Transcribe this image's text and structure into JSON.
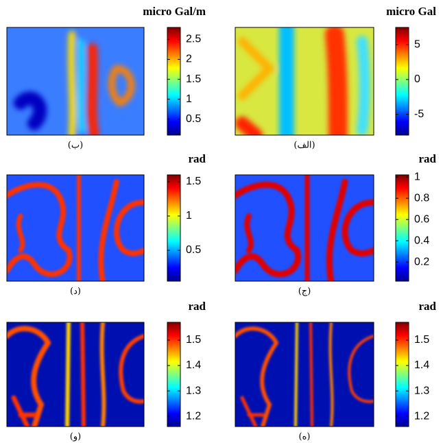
{
  "chart_data": [
    {
      "type": "heatmap",
      "colormap": "jet",
      "unit": "micro Gal/m",
      "caption": "(ب)",
      "clim": [
        0.1,
        2.8
      ],
      "cticks": [
        0.5,
        1,
        1.5,
        2,
        2.5
      ]
    },
    {
      "type": "heatmap",
      "colormap": "jet",
      "unit": "micro Gal",
      "caption": "(الف)",
      "clim": [
        -8,
        7.5
      ],
      "cticks": [
        -5,
        0,
        5
      ]
    },
    {
      "type": "heatmap",
      "colormap": "jet",
      "unit": "rad",
      "caption": "(د)",
      "clim": [
        0.05,
        1.6
      ],
      "cticks": [
        0.5,
        1,
        1.5
      ]
    },
    {
      "type": "heatmap",
      "colormap": "jet",
      "unit": "rad",
      "caption": "(ج)",
      "clim": [
        0.02,
        1.02
      ],
      "cticks": [
        0.2,
        0.4,
        0.6,
        0.8,
        1
      ]
    },
    {
      "type": "heatmap",
      "colormap": "jet",
      "unit": "rad",
      "caption": "(و)",
      "clim": [
        1.16,
        1.57
      ],
      "cticks": [
        1.2,
        1.3,
        1.4,
        1.5
      ]
    },
    {
      "type": "heatmap",
      "colormap": "jet",
      "unit": "rad",
      "caption": "(ه)",
      "clim": [
        1.16,
        1.57
      ],
      "cticks": [
        1.2,
        1.3,
        1.4,
        1.5
      ]
    }
  ]
}
